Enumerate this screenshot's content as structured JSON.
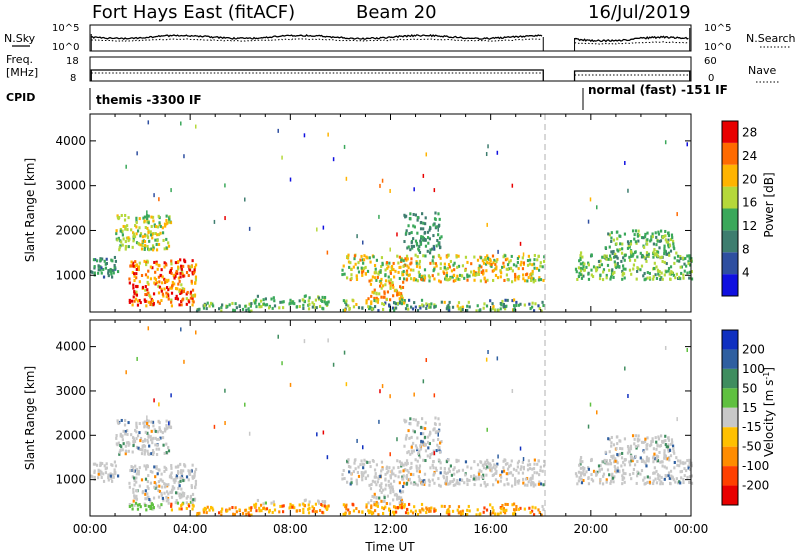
{
  "header": {
    "station": "Fort Hays East (fitACF)",
    "beam": "Beam 20",
    "date": "16/Jul/2019"
  },
  "noise_panel": {
    "left_label": "N.Sky",
    "right_label": "N.Search",
    "left_ticks": [
      "10^5",
      "10^0"
    ],
    "right_ticks": [
      "10^5",
      "10^0"
    ]
  },
  "freq_panel": {
    "left_label_line1": "Freq.",
    "left_label_line2": "[MHz]",
    "left_ticks": [
      "18",
      "8"
    ],
    "right_label": "Nave",
    "right_ticks": [
      "60",
      "0"
    ]
  },
  "cpid_panel": {
    "label": "CPID",
    "segments": [
      {
        "text": "themis -3300 IF",
        "start_hour": 0.0,
        "end_hour": 18.17
      },
      {
        "text": "normal (fast) -151 IF",
        "start_hour": 19.33,
        "end_hour": 24.0
      }
    ]
  },
  "chart_data": [
    {
      "type": "heatmap",
      "name": "power",
      "ylabel": "Slant Range [km]",
      "xlabel": "Time UT",
      "x_range_hours": [
        0,
        24
      ],
      "ylim": [
        180,
        4600
      ],
      "yticks": [
        1000,
        2000,
        3000,
        4000
      ],
      "xticks": [
        "00:00",
        "04:00",
        "08:00",
        "12:00",
        "16:00",
        "20:00",
        "00:00"
      ],
      "colorbar": {
        "label": "Power [dB]",
        "ticks": [
          4,
          8,
          12,
          16,
          20,
          24,
          28
        ],
        "range": [
          0,
          30
        ],
        "colors": [
          "#1010e0",
          "#2f4fa0",
          "#3e7d6f",
          "#3aa85a",
          "#b5d83a",
          "#ffb400",
          "#ff6a00",
          "#e80000"
        ]
      },
      "data_gap_hours": [
        18.17,
        19.33
      ],
      "dashed_marker_hour": 18.17,
      "regions": [
        {
          "t": [
            0.0,
            1.2
          ],
          "r": [
            950,
            1400
          ],
          "p": [
            6,
            14
          ]
        },
        {
          "t": [
            1.0,
            3.2
          ],
          "r": [
            1550,
            2350
          ],
          "p": [
            12,
            22
          ]
        },
        {
          "t": [
            1.5,
            4.2
          ],
          "r": [
            300,
            1350
          ],
          "p": [
            18,
            30
          ]
        },
        {
          "t": [
            4.2,
            6.5
          ],
          "r": [
            180,
            380
          ],
          "p": [
            8,
            16
          ]
        },
        {
          "t": [
            6.5,
            9.5
          ],
          "r": [
            250,
            550
          ],
          "p": [
            10,
            18
          ]
        },
        {
          "t": [
            10.0,
            18.1
          ],
          "r": [
            850,
            1450
          ],
          "p": [
            12,
            24
          ]
        },
        {
          "t": [
            11.0,
            12.5
          ],
          "r": [
            450,
            850
          ],
          "p": [
            16,
            26
          ]
        },
        {
          "t": [
            12.5,
            14.0
          ],
          "r": [
            1500,
            2400
          ],
          "p": [
            8,
            14
          ]
        },
        {
          "t": [
            10.0,
            18.1
          ],
          "r": [
            200,
            450
          ],
          "p": [
            4,
            20
          ]
        },
        {
          "t": [
            19.35,
            24.0
          ],
          "r": [
            900,
            1500
          ],
          "p": [
            10,
            18
          ]
        },
        {
          "t": [
            20.5,
            23.3
          ],
          "r": [
            1400,
            2000
          ],
          "p": [
            10,
            18
          ]
        }
      ]
    },
    {
      "type": "heatmap",
      "name": "velocity",
      "ylabel": "Slant Range [km]",
      "xlabel": "Time UT",
      "x_range_hours": [
        0,
        24
      ],
      "ylim": [
        180,
        4600
      ],
      "yticks": [
        1000,
        2000,
        3000,
        4000
      ],
      "xticks": [
        "00:00",
        "04:00",
        "08:00",
        "12:00",
        "16:00",
        "20:00",
        "00:00"
      ],
      "colorbar": {
        "label": "Velocity [m s^-1]",
        "ticks": [
          "200",
          "100",
          "50",
          "15",
          "-15",
          "-50",
          "-100",
          "-200"
        ],
        "colors": [
          "#1030c0",
          "#2f5fa0",
          "#3f8d5f",
          "#5fc040",
          "#c8c8c8",
          "#ffc000",
          "#ff8c00",
          "#ff4000",
          "#e80000"
        ]
      },
      "data_gap_hours": [
        18.17,
        19.33
      ],
      "dashed_marker_hour": 18.17
    }
  ]
}
